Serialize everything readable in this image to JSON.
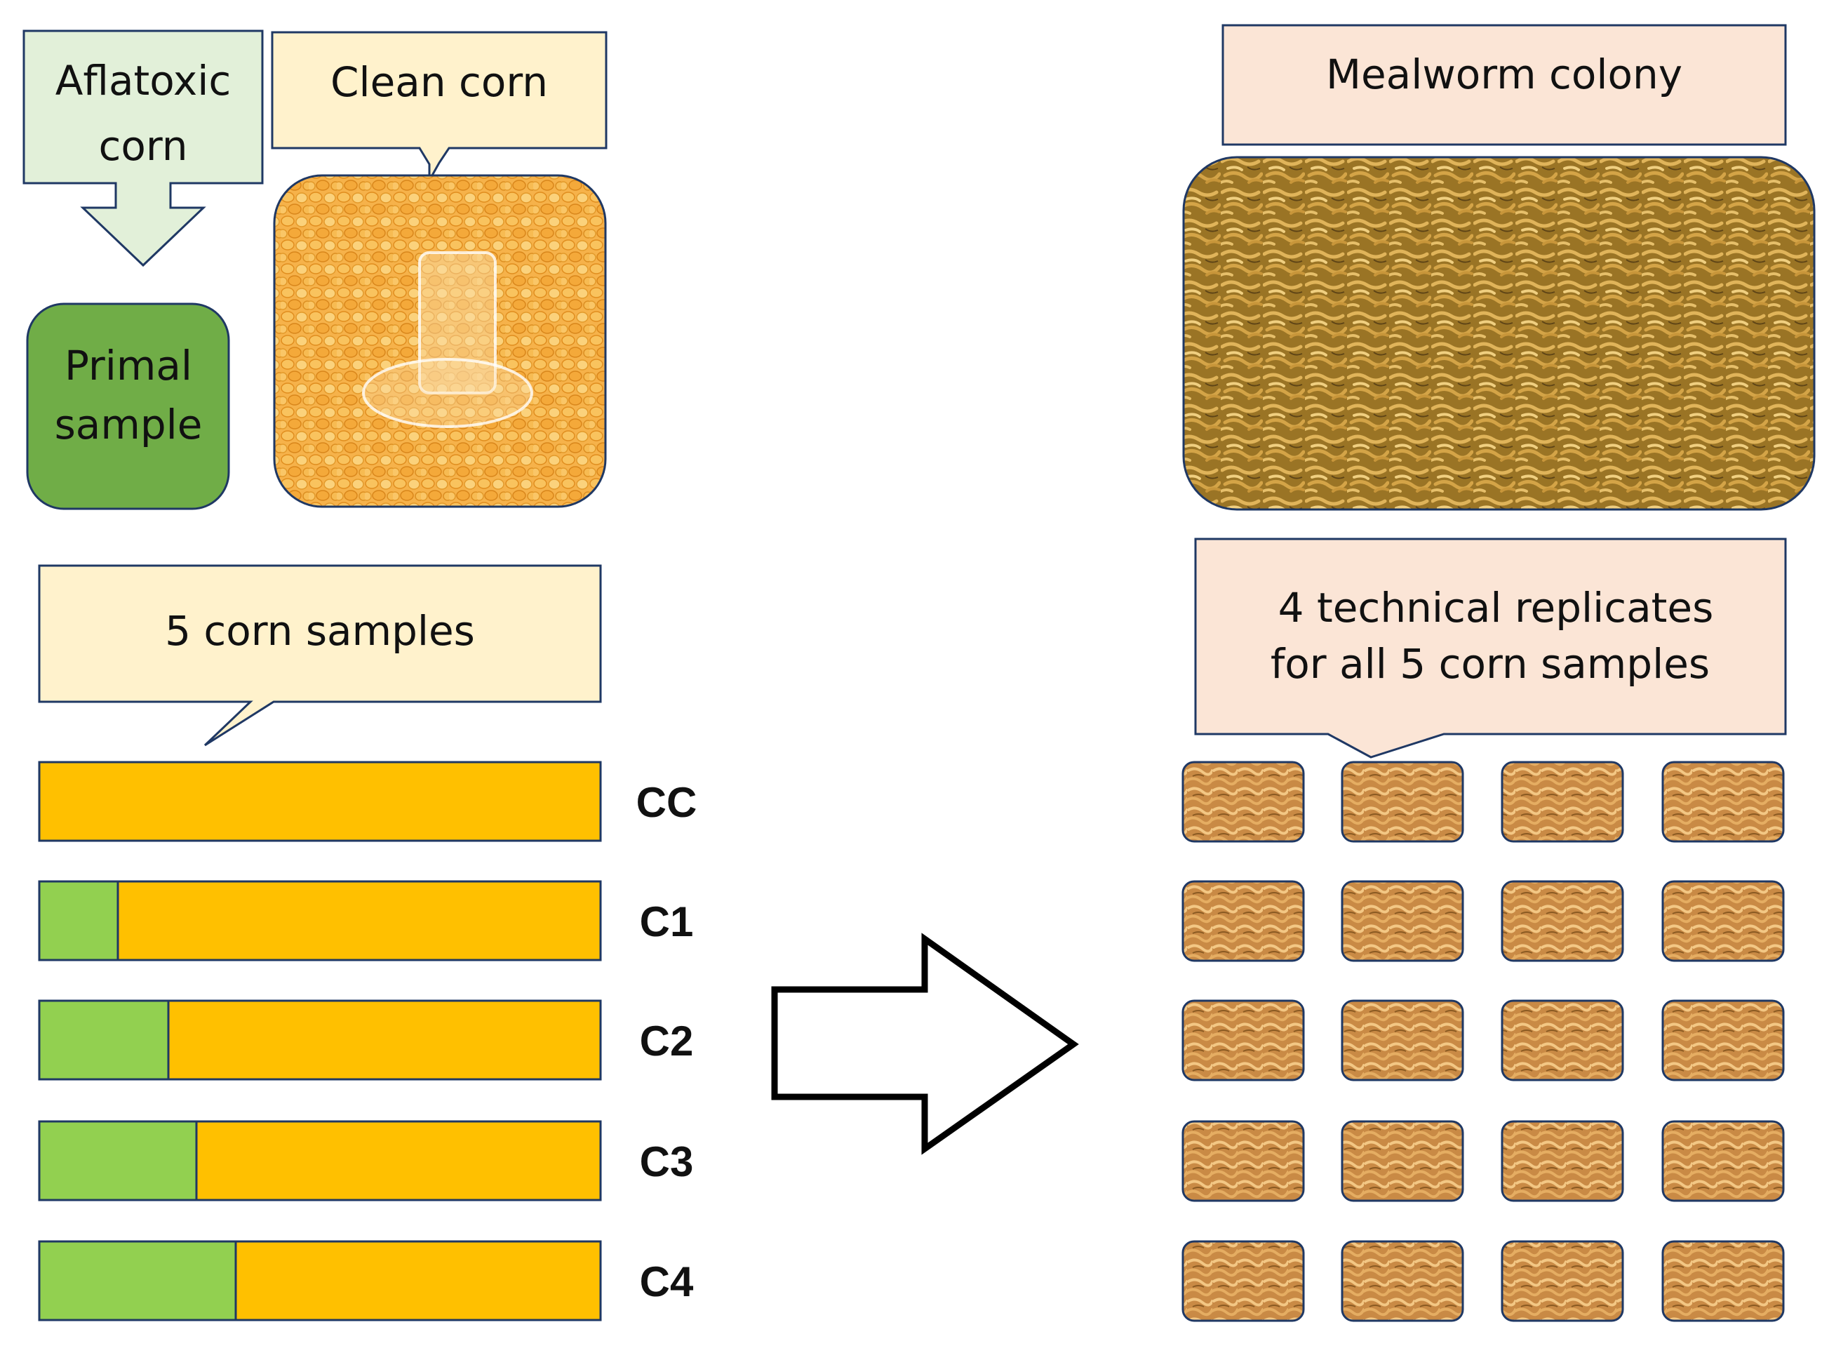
{
  "left": {
    "aflatoxic_callout": {
      "line1": "Aflatoxic",
      "line2": "corn"
    },
    "clean_callout": {
      "label": "Clean corn"
    },
    "primal_box": {
      "line1": "Primal",
      "line2": "sample"
    },
    "samples_callout": {
      "label": "5 corn samples"
    },
    "bars": [
      {
        "code": "CC",
        "aflatoxic_fraction": 0.0
      },
      {
        "code": "C1",
        "aflatoxic_fraction": 0.14
      },
      {
        "code": "C2",
        "aflatoxic_fraction": 0.23
      },
      {
        "code": "C3",
        "aflatoxic_fraction": 0.28
      },
      {
        "code": "C4",
        "aflatoxic_fraction": 0.35
      }
    ]
  },
  "right": {
    "colony_callout": {
      "label": "Mealworm colony"
    },
    "replicates_callout": {
      "line1": "4 technical replicates",
      "line2": "for all 5 corn samples"
    },
    "grid": {
      "rows": 5,
      "columns": 4
    }
  },
  "colors": {
    "aflatoxic_box": "#e2f0d9",
    "clean_box": "#fff2cc",
    "primal_box": "#70ad47",
    "aflatoxic_bar": "#92d050",
    "clean_bar": "#ffc000",
    "colony_box": "#fbe5d6",
    "outline": "#1f3864"
  }
}
